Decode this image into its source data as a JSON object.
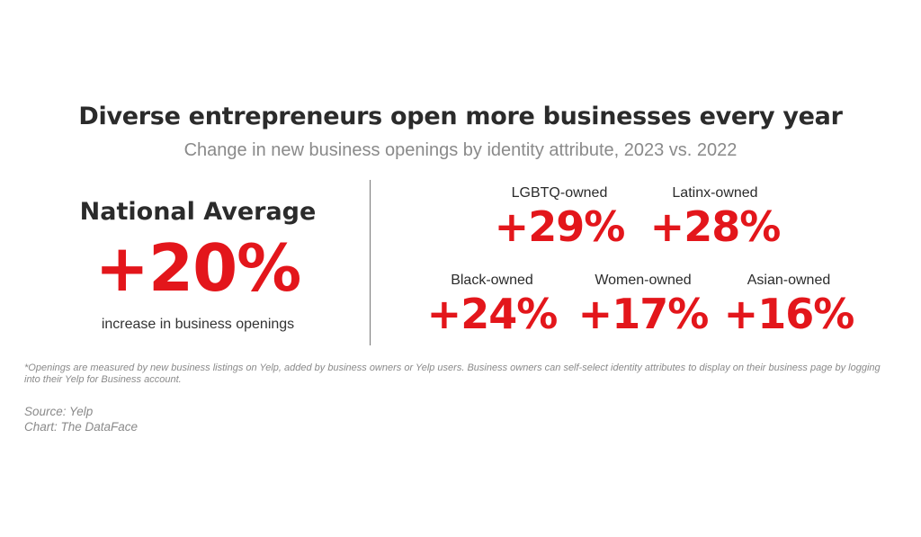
{
  "title": "Diverse entrepreneurs open more businesses every year",
  "subtitle": "Change in new business openings by identity attribute, 2023 vs. 2022",
  "national": {
    "label": "National Average",
    "value": "+20%",
    "note": "increase in business openings"
  },
  "colors": {
    "accent": "#e3161b",
    "text": "#2b2b2b",
    "muted": "#8a8a8a"
  },
  "chart_data": {
    "type": "table",
    "title": "Diverse entrepreneurs open more businesses every year",
    "subtitle": "Change in new business openings by identity attribute, 2023 vs. 2022",
    "categories": [
      "National Average",
      "LGBTQ-owned",
      "Latinx-owned",
      "Black-owned",
      "Women-owned",
      "Asian-owned"
    ],
    "values": [
      20,
      29,
      28,
      24,
      17,
      16
    ],
    "unit": "%",
    "groups": [
      {
        "label": "LGBTQ-owned",
        "value": "+29%"
      },
      {
        "label": "Latinx-owned",
        "value": "+28%"
      },
      {
        "label": "Black-owned",
        "value": "+24%"
      },
      {
        "label": "Women-owned",
        "value": "+17%"
      },
      {
        "label": "Asian-owned",
        "value": "+16%"
      }
    ]
  },
  "footnote": "*Openings are measured by new business listings on Yelp, added by business owners or Yelp users. Business owners can self-select identity attributes to display on their business page by logging into their Yelp for Business account.",
  "source": "Source: Yelp",
  "credit": "Chart: The DataFace"
}
